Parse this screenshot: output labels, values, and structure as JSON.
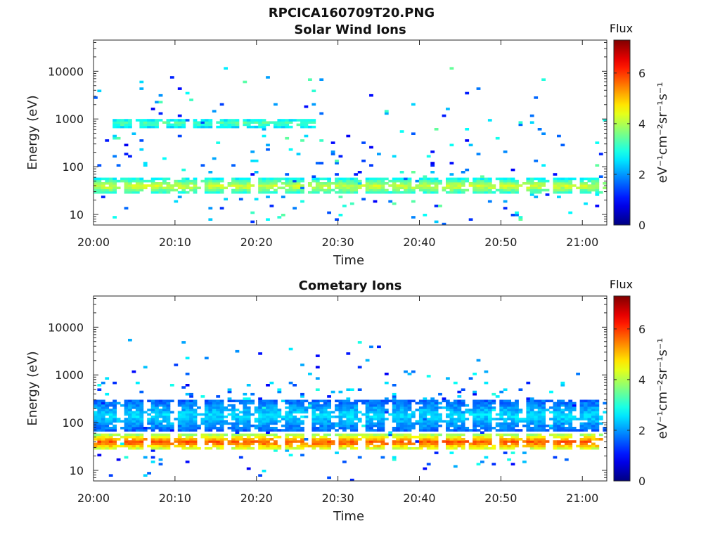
{
  "figure_title": "RPCICA160709T20.PNG",
  "chart_data": [
    {
      "type": "heatmap",
      "title": "Solar Wind Ions",
      "xlabel": "Time",
      "ylabel": "Energy (eV)",
      "x_tick_labels": [
        "20:00",
        "20:10",
        "20:20",
        "20:30",
        "20:40",
        "20:50",
        "21:00"
      ],
      "x_ticks_minutes": [
        0,
        10,
        20,
        30,
        40,
        50,
        60
      ],
      "xlim_minutes": [
        0,
        63
      ],
      "y_scale": "log",
      "ylim": [
        6,
        45000
      ],
      "y_ticks": [
        10,
        100,
        1000,
        10000
      ],
      "y_tick_labels": [
        "10",
        "100",
        "1000",
        "10000"
      ],
      "colorbar": {
        "title": "Flux",
        "label": "eV⁻¹cm⁻²sr⁻¹s⁻¹",
        "range": [
          0,
          7.3
        ],
        "ticks": [
          0,
          2,
          4,
          6
        ],
        "tick_labels": [
          "0",
          "2",
          "4",
          "6"
        ],
        "colormap": "jet"
      },
      "bands": [
        {
          "energy_min": 25,
          "energy_max": 55,
          "flux": 4.6,
          "time_start": 0,
          "time_end": 63,
          "periodic_minutes": 3.3,
          "description_free": true
        },
        {
          "energy_min": 600,
          "energy_max": 1000,
          "flux": 3.8,
          "time_start": 2,
          "time_end": 27,
          "periodic_minutes": 3.3
        }
      ],
      "scatter_flux_range": [
        0.8,
        3.5
      ]
    },
    {
      "type": "heatmap",
      "title": "Cometary Ions",
      "xlabel": "Time",
      "ylabel": "Energy (eV)",
      "x_tick_labels": [
        "20:00",
        "20:10",
        "20:20",
        "20:30",
        "20:40",
        "20:50",
        "21:00"
      ],
      "x_ticks_minutes": [
        0,
        10,
        20,
        30,
        40,
        50,
        60
      ],
      "xlim_minutes": [
        0,
        63
      ],
      "y_scale": "log",
      "ylim": [
        6,
        45000
      ],
      "y_ticks": [
        10,
        100,
        1000,
        10000
      ],
      "y_tick_labels": [
        "10",
        "100",
        "1000",
        "10000"
      ],
      "colorbar": {
        "title": "Flux",
        "label": "eV⁻¹cm⁻²sr⁻¹s⁻¹",
        "range": [
          0,
          7.3
        ],
        "ticks": [
          0,
          2,
          4,
          6
        ],
        "tick_labels": [
          "0",
          "2",
          "4",
          "6"
        ],
        "colormap": "jet"
      },
      "bands": [
        {
          "energy_min": 25,
          "energy_max": 55,
          "flux": 6.2,
          "time_start": 0,
          "time_end": 63,
          "periodic_minutes": 3.3
        },
        {
          "energy_min": 60,
          "energy_max": 300,
          "flux": 2.8,
          "time_start": 0,
          "time_end": 63,
          "periodic_minutes": 3.3
        }
      ],
      "scatter_flux_range": [
        0.8,
        3.0
      ]
    }
  ]
}
